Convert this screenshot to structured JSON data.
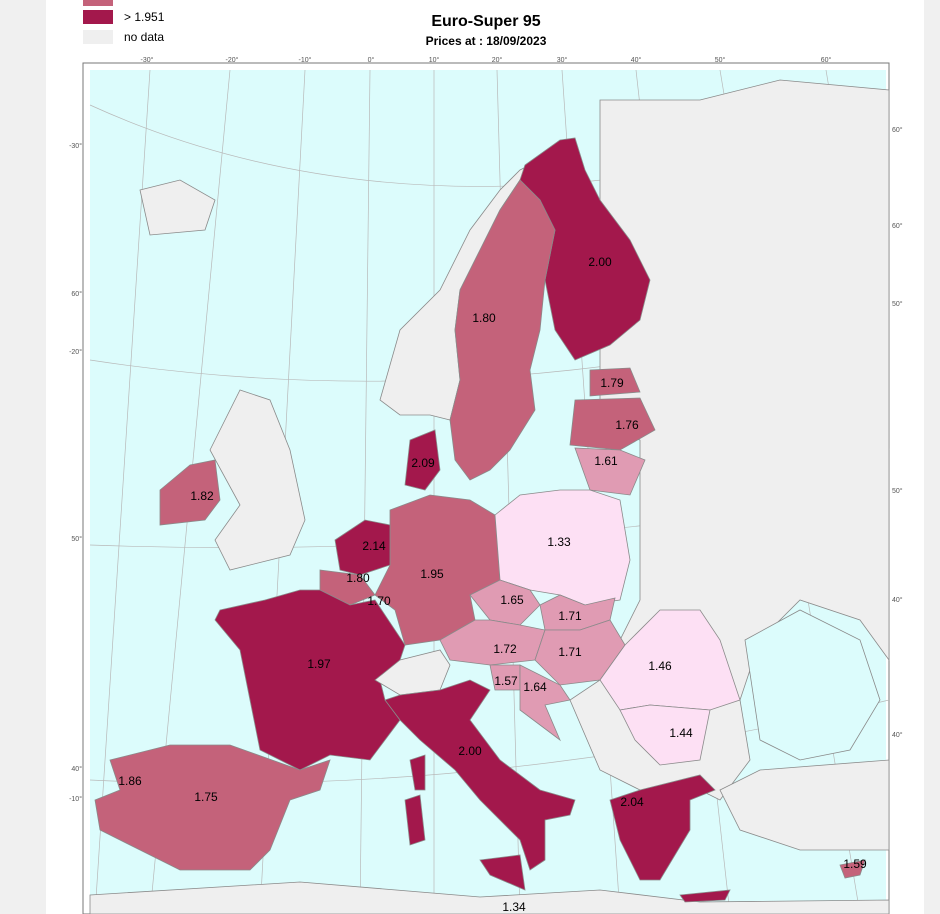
{
  "legend": [
    {
      "label": "> 1.951"
    },
    {
      "label": "no data"
    }
  ],
  "title": "Euro-Super 95",
  "subtitle": "Prices at : 18/09/2023",
  "top_graticule_labels": [
    "-30°",
    "-20°",
    "-10°",
    "0°",
    "10°",
    "20°",
    "30°",
    "40°",
    "50°",
    "60°"
  ],
  "left_graticule_labels": [
    "-30°",
    "60°",
    "-20°",
    "50°",
    "40°",
    "-10°"
  ],
  "right_graticule_labels": [
    "60°",
    "60°",
    "50°",
    "50°",
    "40°",
    "40°"
  ],
  "price_labels": [
    "2.00",
    "1.80",
    "1.79",
    "1.76",
    "1.61",
    "2.09",
    "1.82",
    "2.14",
    "1.80",
    "1.95",
    "1.33",
    "1.70",
    "1.65",
    "1.71",
    "1.72",
    "1.71",
    "1.97",
    "1.46",
    "1.57",
    "1.64",
    "2.00",
    "1.44",
    "1.86",
    "1.75",
    "2.04",
    "1.59",
    "1.34"
  ]
}
